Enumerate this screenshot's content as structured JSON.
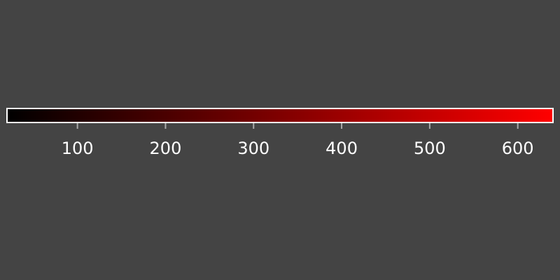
{
  "chart_data": {
    "type": "colorbar",
    "orientation": "horizontal",
    "range": [
      20,
      640
    ],
    "colormap": [
      "#000000",
      "#ff0000"
    ],
    "ticks": [
      100,
      200,
      300,
      400,
      500,
      600
    ],
    "tick_labels": [
      "100",
      "200",
      "300",
      "400",
      "500",
      "600"
    ]
  },
  "colors": {
    "background": "#444444",
    "border": "#ffffff",
    "tick": "#aaaaaa",
    "label": "#ffffff"
  }
}
